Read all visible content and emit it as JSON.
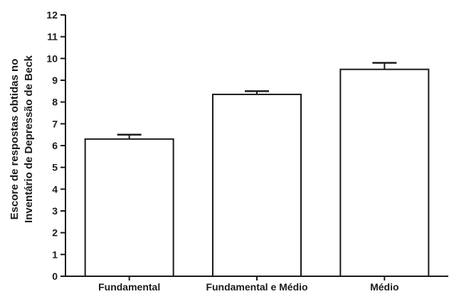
{
  "chart_data": {
    "type": "bar",
    "title": "",
    "xlabel": "",
    "ylabel_lines": [
      "Escore de respostas obtidas no",
      "Inventário de Depressão de Beck"
    ],
    "categories": [
      "Fundamental",
      "Fundamental e Médio",
      "Médio"
    ],
    "values": [
      6.3,
      8.35,
      9.5
    ],
    "error_upper": [
      6.5,
      8.5,
      9.8
    ],
    "ylim": [
      0,
      12
    ],
    "yticks": [
      "0",
      "1",
      "2",
      "3",
      "4",
      "5",
      "6",
      "7",
      "8",
      "9",
      "10",
      "11",
      "12"
    ],
    "grid": false,
    "legend": "none",
    "colors": {
      "bar_fill": "#ffffff",
      "stroke": "#1a1a1a"
    }
  }
}
